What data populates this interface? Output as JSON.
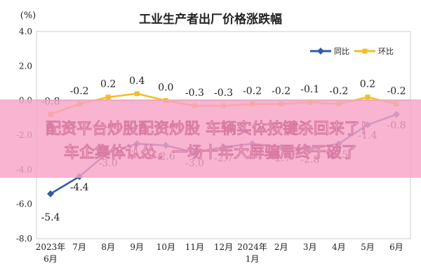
{
  "chart_data": {
    "type": "line",
    "title": "工业生产者出厂价格涨跌幅",
    "ylabel": "(%)",
    "ylim": [
      -8.0,
      4.0
    ],
    "y_ticks": [
      "4.0",
      "2.0",
      "0.0",
      "-2.0",
      "-4.0",
      "-6.0",
      "-8.0"
    ],
    "y_tick_values": [
      4,
      2,
      0,
      -2,
      -4,
      -6,
      -8
    ],
    "categories": [
      [
        "2023年",
        "6月"
      ],
      [
        "7月"
      ],
      [
        "8月"
      ],
      [
        "9月"
      ],
      [
        "10月"
      ],
      [
        "11月"
      ],
      [
        "12月"
      ],
      [
        "2024年",
        "1月"
      ],
      [
        "2月"
      ],
      [
        "3月"
      ],
      [
        "4月"
      ],
      [
        "5月"
      ],
      [
        "6月"
      ]
    ],
    "series": [
      {
        "name": "同比",
        "color": "#2e5ba8",
        "values": [
          -5.4,
          -4.4,
          -3.0,
          -2.5,
          -2.6,
          -3.0,
          -2.7,
          -2.5,
          -2.7,
          -2.8,
          -2.5,
          -1.4,
          -0.8
        ],
        "labels": [
          "-5.4",
          "-4.4",
          "-3.0",
          "-2.5",
          "-2.6",
          "-3.0",
          "-2.7",
          "-2.5",
          "-2.7",
          "-2.8",
          "-2.5",
          "-1.4",
          "-0.8"
        ]
      },
      {
        "name": "环比",
        "color": "#f2bd27",
        "values": [
          -0.8,
          -0.2,
          0.2,
          0.4,
          0.0,
          -0.3,
          -0.3,
          -0.2,
          -0.2,
          -0.1,
          -0.2,
          0.2,
          -0.2
        ],
        "labels": [
          "-0.8",
          "-0.2",
          "0.2",
          "0.4",
          "0.0",
          "-0.3",
          "-0.3",
          "-0.2",
          "-0.2",
          "-0.1",
          "-0.2",
          "0.2",
          "-0.2"
        ]
      }
    ],
    "legend_position": "top-right",
    "grid": false
  },
  "banner": {
    "line1": "配资平台炒股配资炒股 车辆实体按键杀回来了！",
    "line2": "车企集体认怂，一场十年大屏骗局终于破了",
    "background": "#f6a4c6",
    "text_color": "#ffffff"
  }
}
